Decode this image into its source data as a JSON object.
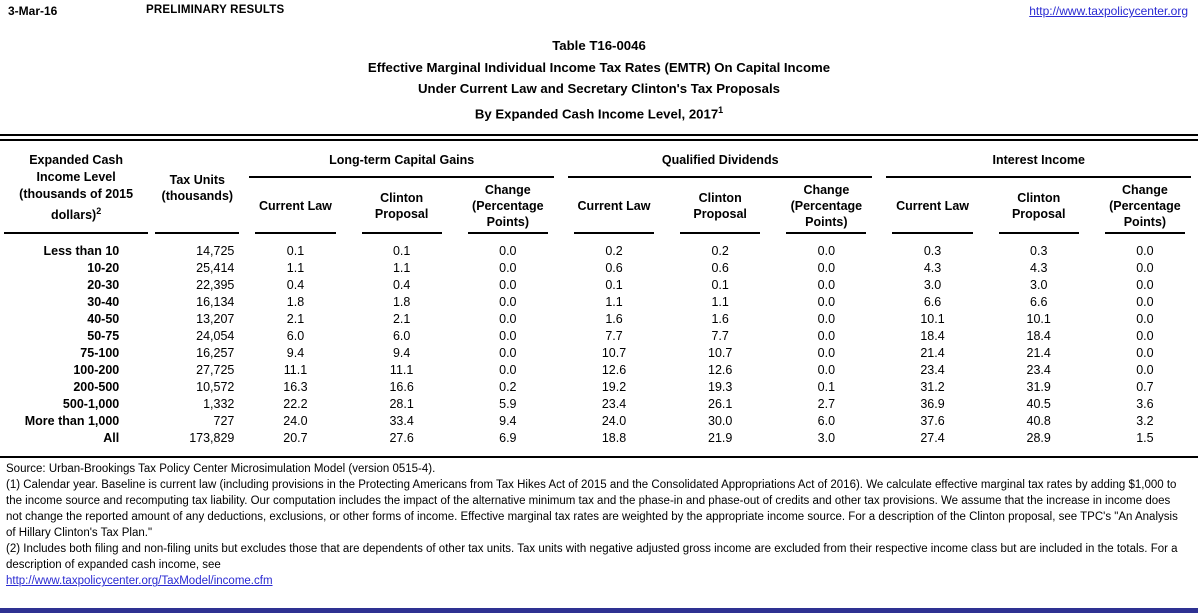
{
  "page_header": {
    "date": "3-Mar-16",
    "status": "PRELIMINARY RESULTS",
    "link": "http://www.taxpolicycenter.org"
  },
  "title": {
    "line1": "Table T16-0046",
    "line2": "Effective Marginal Individual Income Tax Rates (EMTR) On Capital Income",
    "line3": "Under Current Law and Secretary Clinton's Tax Proposals",
    "line4": "By Expanded Cash Income Level, 2017",
    "line4_superscript": "1"
  },
  "table": {
    "row_header": {
      "label": "Expanded Cash Income Level (thousands of 2015 dollars)",
      "superscript": "2"
    },
    "tax_units_header": "Tax Units (thousands)",
    "groups": [
      {
        "label": "Long-term Capital Gains"
      },
      {
        "label": "Qualified Dividends"
      },
      {
        "label": "Interest Income"
      }
    ],
    "subheaders": [
      "Current Law",
      "Clinton Proposal",
      "Change (Percentage Points)"
    ],
    "rows": [
      {
        "label": "Less than 10",
        "tax_units": "14,725",
        "ltcg": [
          "0.1",
          "0.1",
          "0.0"
        ],
        "qd": [
          "0.2",
          "0.2",
          "0.0"
        ],
        "ii": [
          "0.3",
          "0.3",
          "0.0"
        ]
      },
      {
        "label": "10-20",
        "tax_units": "25,414",
        "ltcg": [
          "1.1",
          "1.1",
          "0.0"
        ],
        "qd": [
          "0.6",
          "0.6",
          "0.0"
        ],
        "ii": [
          "4.3",
          "4.3",
          "0.0"
        ]
      },
      {
        "label": "20-30",
        "tax_units": "22,395",
        "ltcg": [
          "0.4",
          "0.4",
          "0.0"
        ],
        "qd": [
          "0.1",
          "0.1",
          "0.0"
        ],
        "ii": [
          "3.0",
          "3.0",
          "0.0"
        ]
      },
      {
        "label": "30-40",
        "tax_units": "16,134",
        "ltcg": [
          "1.8",
          "1.8",
          "0.0"
        ],
        "qd": [
          "1.1",
          "1.1",
          "0.0"
        ],
        "ii": [
          "6.6",
          "6.6",
          "0.0"
        ]
      },
      {
        "label": "40-50",
        "tax_units": "13,207",
        "ltcg": [
          "2.1",
          "2.1",
          "0.0"
        ],
        "qd": [
          "1.6",
          "1.6",
          "0.0"
        ],
        "ii": [
          "10.1",
          "10.1",
          "0.0"
        ]
      },
      {
        "label": "50-75",
        "tax_units": "24,054",
        "ltcg": [
          "6.0",
          "6.0",
          "0.0"
        ],
        "qd": [
          "7.7",
          "7.7",
          "0.0"
        ],
        "ii": [
          "18.4",
          "18.4",
          "0.0"
        ]
      },
      {
        "label": "75-100",
        "tax_units": "16,257",
        "ltcg": [
          "9.4",
          "9.4",
          "0.0"
        ],
        "qd": [
          "10.7",
          "10.7",
          "0.0"
        ],
        "ii": [
          "21.4",
          "21.4",
          "0.0"
        ]
      },
      {
        "label": "100-200",
        "tax_units": "27,725",
        "ltcg": [
          "11.1",
          "11.1",
          "0.0"
        ],
        "qd": [
          "12.6",
          "12.6",
          "0.0"
        ],
        "ii": [
          "23.4",
          "23.4",
          "0.0"
        ]
      },
      {
        "label": "200-500",
        "tax_units": "10,572",
        "ltcg": [
          "16.3",
          "16.6",
          "0.2"
        ],
        "qd": [
          "19.2",
          "19.3",
          "0.1"
        ],
        "ii": [
          "31.2",
          "31.9",
          "0.7"
        ]
      },
      {
        "label": "500-1,000",
        "tax_units": "1,332",
        "ltcg": [
          "22.2",
          "28.1",
          "5.9"
        ],
        "qd": [
          "23.4",
          "26.1",
          "2.7"
        ],
        "ii": [
          "36.9",
          "40.5",
          "3.6"
        ]
      },
      {
        "label": "More than 1,000",
        "tax_units": "727",
        "ltcg": [
          "24.0",
          "33.4",
          "9.4"
        ],
        "qd": [
          "24.0",
          "30.0",
          "6.0"
        ],
        "ii": [
          "37.6",
          "40.8",
          "3.2"
        ]
      },
      {
        "label": "All",
        "tax_units": "173,829",
        "ltcg": [
          "20.7",
          "27.6",
          "6.9"
        ],
        "qd": [
          "18.8",
          "21.9",
          "3.0"
        ],
        "ii": [
          "27.4",
          "28.9",
          "1.5"
        ]
      }
    ]
  },
  "footnotes": {
    "source": "Source: Urban-Brookings Tax Policy Center Microsimulation Model (version 0515-4).",
    "note1": "(1) Calendar year. Baseline is current law (including provisions in the Protecting Americans from Tax Hikes Act of 2015 and the Consolidated Appropriations Act of 2016). We calculate effective marginal tax rates by adding $1,000 to the income source and recomputing tax liability. Our computation includes the impact of the alternative minimum tax and the phase-in and phase-out of credits and other tax provisions. We assume that the increase in income does not change the reported amount of any deductions, exclusions, or other forms of income. Effective marginal tax rates are weighted by the appropriate income source. For a description of the Clinton proposal, see TPC's \"An Analysis of Hillary Clinton's Tax Plan.\"",
    "note2": "(2) Includes both filing and non-filing units but excludes those that are dependents of other tax units. Tax units with negative adjusted gross income are excluded from their respective income class but are included in the totals. For a description of expanded cash income, see",
    "link": "http://www.taxpolicycenter.org/TaxModel/income.cfm"
  },
  "colors": {
    "link_blue": "#2a2ad2",
    "bottom_accent_bar": "#2e3192"
  }
}
